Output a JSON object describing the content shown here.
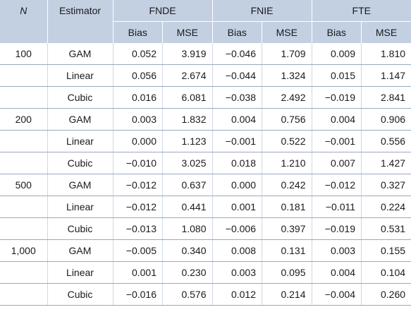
{
  "header": {
    "n_label": "N",
    "estimator_label": "Estimator",
    "groups": [
      "FNDE",
      "FNIE",
      "FTE"
    ],
    "sub": [
      "Bias",
      "MSE"
    ]
  },
  "rows": [
    {
      "n": "100",
      "est": "GAM",
      "v": [
        "0.052",
        "3.919",
        "−0.046",
        "1.709",
        "0.009",
        "1.810"
      ]
    },
    {
      "n": "",
      "est": "Linear",
      "v": [
        "0.056",
        "2.674",
        "−0.044",
        "1.324",
        "0.015",
        "1.147"
      ]
    },
    {
      "n": "",
      "est": "Cubic",
      "v": [
        "0.016",
        "6.081",
        "−0.038",
        "2.492",
        "−0.019",
        "2.841"
      ]
    },
    {
      "n": "200",
      "est": "GAM",
      "v": [
        "0.003",
        "1.832",
        "0.004",
        "0.756",
        "0.004",
        "0.906"
      ]
    },
    {
      "n": "",
      "est": "Linear",
      "v": [
        "0.000",
        "1.123",
        "−0.001",
        "0.522",
        "−0.001",
        "0.556"
      ]
    },
    {
      "n": "",
      "est": "Cubic",
      "v": [
        "−0.010",
        "3.025",
        "0.018",
        "1.210",
        "0.007",
        "1.427"
      ]
    },
    {
      "n": "500",
      "est": "GAM",
      "v": [
        "−0.012",
        "0.637",
        "0.000",
        "0.242",
        "−0.012",
        "0.327"
      ]
    },
    {
      "n": "",
      "est": "Linear",
      "v": [
        "−0.012",
        "0.441",
        "0.001",
        "0.181",
        "−0.011",
        "0.224"
      ]
    },
    {
      "n": "",
      "est": "Cubic",
      "v": [
        "−0.013",
        "1.080",
        "−0.006",
        "0.397",
        "−0.019",
        "0.531"
      ]
    },
    {
      "n": "1,000",
      "est": "GAM",
      "v": [
        "−0.005",
        "0.340",
        "0.008",
        "0.131",
        "0.003",
        "0.155"
      ]
    },
    {
      "n": "",
      "est": "Linear",
      "v": [
        "0.001",
        "0.230",
        "0.003",
        "0.095",
        "0.004",
        "0.104"
      ]
    },
    {
      "n": "",
      "est": "Cubic",
      "v": [
        "−0.016",
        "0.576",
        "0.012",
        "0.214",
        "−0.004",
        "0.260"
      ]
    }
  ]
}
